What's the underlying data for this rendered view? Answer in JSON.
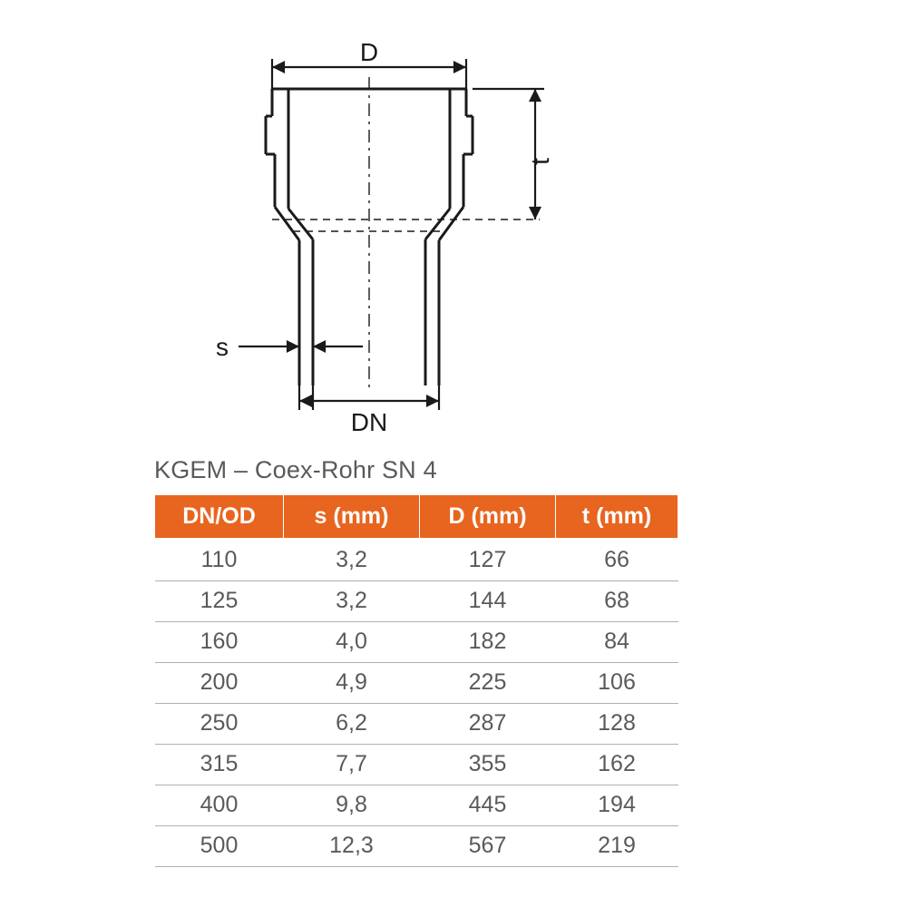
{
  "diagram": {
    "labels": {
      "D": "D",
      "t": "t",
      "s": "s",
      "DN": "DN"
    },
    "colors": {
      "line": "#1a1a1a",
      "text": "#1a1a1a"
    },
    "stroke_width_main": 3,
    "stroke_width_dim": 2.2,
    "font_size": 28,
    "font_weight": "400"
  },
  "table": {
    "title": "KGEM – Coex-Rohr SN 4",
    "header_bg": "#e8651f",
    "header_fg": "#ffffff",
    "body_fg": "#5a5a5a",
    "row_border": "#b0b0b0",
    "columns": [
      "DN/OD",
      "s (mm)",
      "D (mm)",
      "t (mm)"
    ],
    "rows": [
      [
        "110",
        "3,2",
        "127",
        "66"
      ],
      [
        "125",
        "3,2",
        "144",
        "68"
      ],
      [
        "160",
        "4,0",
        "182",
        "84"
      ],
      [
        "200",
        "4,9",
        "225",
        "106"
      ],
      [
        "250",
        "6,2",
        "287",
        "128"
      ],
      [
        "315",
        "7,7",
        "355",
        "162"
      ],
      [
        "400",
        "9,8",
        "445",
        "194"
      ],
      [
        "500",
        "12,3",
        "567",
        "219"
      ]
    ]
  }
}
